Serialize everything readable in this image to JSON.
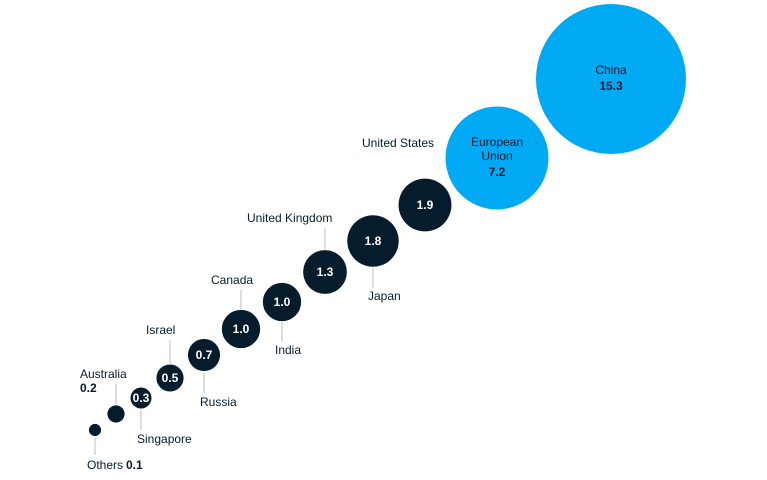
{
  "chart_data": {
    "type": "bubble",
    "categories": [
      "Others",
      "Australia",
      "Singapore",
      "Israel",
      "Russia",
      "Canada",
      "India",
      "United Kingdom",
      "Japan",
      "United States",
      "European Union",
      "China"
    ],
    "values": [
      0.1,
      0.2,
      0.3,
      0.5,
      0.7,
      1.0,
      1.0,
      1.3,
      1.8,
      1.9,
      7.2,
      15.3
    ],
    "value_labels": [
      "0.1",
      "0.2",
      "0.3",
      "0.5",
      "0.7",
      "1.0",
      "1.0",
      "1.3",
      "1.8",
      "1.9",
      "7.2",
      "15.3"
    ],
    "colors": [
      "#051c2c",
      "#051c2c",
      "#051c2c",
      "#051c2c",
      "#051c2c",
      "#051c2c",
      "#051c2c",
      "#051c2c",
      "#051c2c",
      "#051c2c",
      "#00a9f4",
      "#00a9f4"
    ]
  }
}
